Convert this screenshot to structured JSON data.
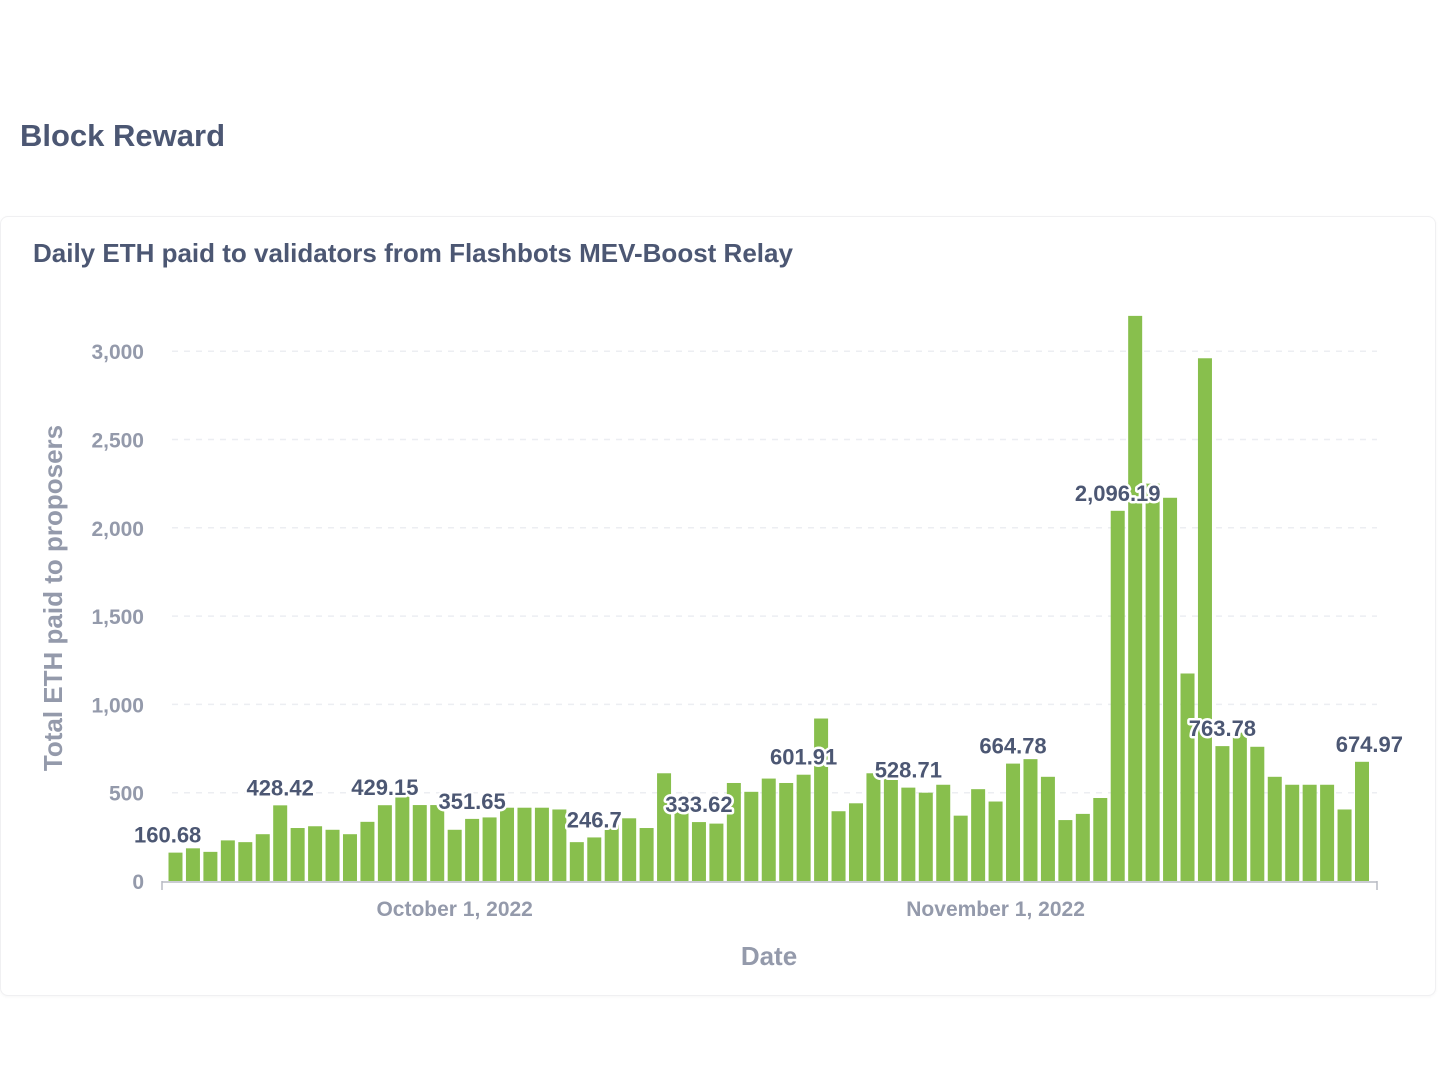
{
  "page": {
    "section_title": "Block Reward",
    "card_title": "Daily ETH paid to validators from Flashbots MEV-Boost Relay"
  },
  "colors": {
    "bar": "#88bf4d",
    "text": "#4c5773",
    "axis_text": "#949aab",
    "grid": "#eceef2"
  },
  "chart_data": {
    "type": "bar",
    "xlabel": "Date",
    "ylabel": "Total ETH paid to proposers",
    "ylim": [
      0,
      3200
    ],
    "yticks": [
      0,
      500,
      1000,
      1500,
      2000,
      2500,
      3000
    ],
    "ytick_labels": [
      "0",
      "500",
      "1,000",
      "1,500",
      "2,000",
      "2,500",
      "3,000"
    ],
    "x_tick_labels": [
      {
        "date": "2022-10-01",
        "label": "October 1, 2022"
      },
      {
        "date": "2022-11-01",
        "label": "November 1, 2022"
      }
    ],
    "grid": "horizontal dashed",
    "start_date": "2022-09-15",
    "values": [
      160.68,
      185,
      165,
      230,
      220,
      265,
      428.42,
      300,
      310,
      290,
      265,
      335,
      429.15,
      500,
      430,
      430,
      290,
      351.65,
      360,
      415,
      415,
      415,
      405,
      220,
      246.7,
      320,
      355,
      300,
      610,
      420,
      333.62,
      325,
      555,
      505,
      580,
      555,
      601.91,
      920,
      395,
      440,
      610,
      600,
      528.71,
      500,
      545,
      370,
      520,
      450,
      664.78,
      690,
      590,
      345,
      380,
      470,
      2096.19,
      3200,
      2250,
      2170,
      1175,
      2960,
      763.78,
      840,
      760,
      590,
      545,
      545,
      545,
      405,
      674.97
    ],
    "data_labels": [
      {
        "index": 0,
        "text": "160.68"
      },
      {
        "index": 6,
        "text": "428.42"
      },
      {
        "index": 12,
        "text": "429.15"
      },
      {
        "index": 17,
        "text": "351.65"
      },
      {
        "index": 24,
        "text": "246.7"
      },
      {
        "index": 30,
        "text": "333.62"
      },
      {
        "index": 36,
        "text": "601.91"
      },
      {
        "index": 42,
        "text": "528.71"
      },
      {
        "index": 48,
        "text": "664.78"
      },
      {
        "index": 54,
        "text": "2,096.19"
      },
      {
        "index": 60,
        "text": "763.78"
      },
      {
        "index": 68,
        "text": "674.97"
      }
    ]
  }
}
